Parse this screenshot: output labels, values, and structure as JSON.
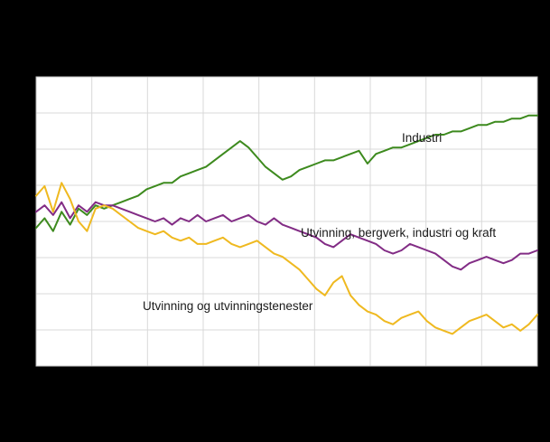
{
  "chart": {
    "background_color": "#000000",
    "plot_background_color": "#ffffff",
    "grid_color": "#d9d9d9",
    "border_color": "#bdbdbd",
    "annotation_text_color": "#1a1a1a"
  },
  "chart_data": {
    "type": "line",
    "title": "",
    "xlabel": "",
    "ylabel": "",
    "xlim": [
      0,
      59
    ],
    "ylim": [
      50,
      140
    ],
    "grid": true,
    "x_divisions": 9,
    "y_divisions": 8,
    "legend_position": "inline-annotations",
    "series": [
      {
        "name": "Industri",
        "color": "#3d8a1e",
        "values": [
          93,
          96,
          92,
          98,
          94,
          99,
          97,
          100,
          99,
          100,
          101,
          102,
          103,
          105,
          106,
          107,
          107,
          109,
          110,
          111,
          112,
          114,
          116,
          118,
          120,
          118,
          115,
          112,
          110,
          108,
          109,
          111,
          112,
          113,
          114,
          114,
          115,
          116,
          117,
          113,
          116,
          117,
          118,
          118,
          119,
          120,
          121,
          122,
          122,
          123,
          123,
          124,
          125,
          125,
          126,
          126,
          127,
          127,
          128,
          128
        ]
      },
      {
        "name": "Utvinning, bergverk, industri og kraft",
        "color": "#822c85",
        "values": [
          98,
          100,
          97,
          101,
          96,
          100,
          98,
          101,
          100,
          100,
          99,
          98,
          97,
          96,
          95,
          96,
          94,
          96,
          95,
          97,
          95,
          96,
          97,
          95,
          96,
          97,
          95,
          94,
          96,
          94,
          93,
          92,
          91,
          90,
          88,
          87,
          89,
          91,
          90,
          89,
          88,
          86,
          85,
          86,
          88,
          87,
          86,
          85,
          83,
          81,
          80,
          82,
          83,
          84,
          83,
          82,
          83,
          85,
          85,
          86
        ]
      },
      {
        "name": "Utvinning og utvinningstenester",
        "color": "#efb920",
        "values": [
          103,
          106,
          98,
          107,
          102,
          95,
          92,
          99,
          100,
          99,
          97,
          95,
          93,
          92,
          91,
          92,
          90,
          89,
          90,
          88,
          88,
          89,
          90,
          88,
          87,
          88,
          89,
          87,
          85,
          84,
          82,
          80,
          77,
          74,
          72,
          76,
          78,
          72,
          69,
          67,
          66,
          64,
          63,
          65,
          66,
          67,
          64,
          62,
          61,
          60,
          62,
          64,
          65,
          66,
          64,
          62,
          63,
          61,
          63,
          66
        ]
      }
    ],
    "annotations": [
      {
        "text": "Industri"
      },
      {
        "text": "Utvinning,  bergverk,  industri og kraft"
      },
      {
        "text": "Utvinning og utvinningstenester"
      }
    ]
  }
}
